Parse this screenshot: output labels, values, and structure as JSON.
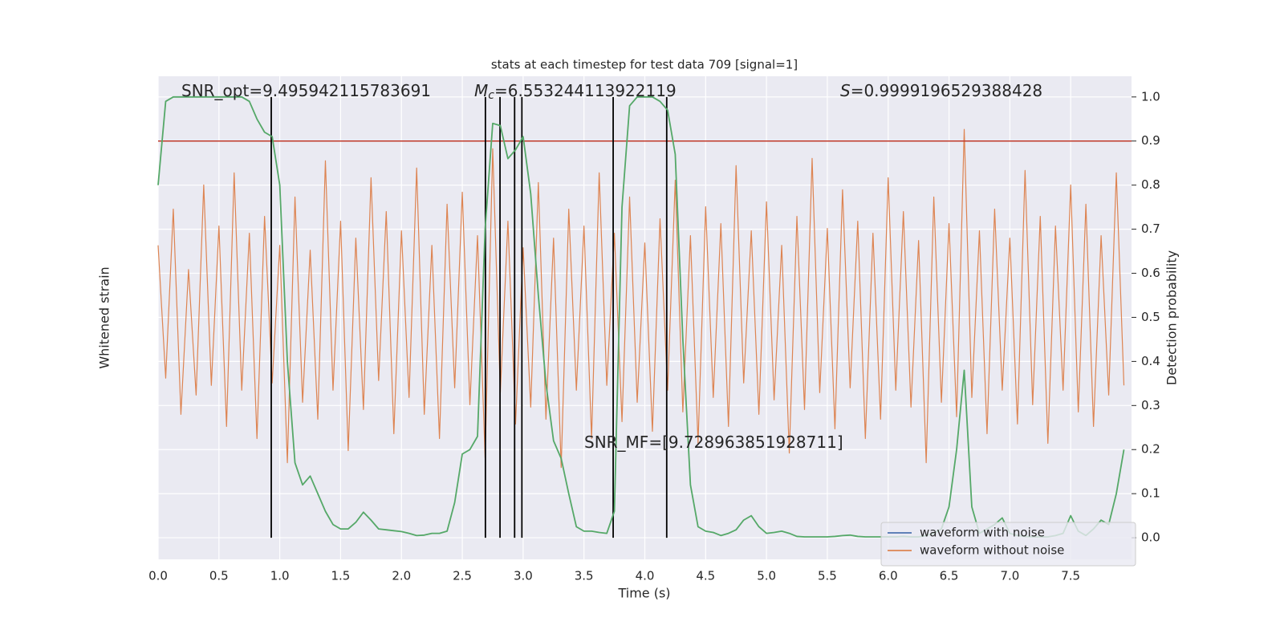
{
  "chart_data": {
    "type": "line",
    "title": "stats at each timestep for test data 709 [signal=1]",
    "xlabel": "Time (s)",
    "ylabel": "Whitened strain",
    "y2label": "Detection probability",
    "x": [
      0,
      0.0625,
      0.125,
      0.1875,
      0.25,
      0.3125,
      0.375,
      0.4375,
      0.5,
      0.5625,
      0.625,
      0.6875,
      0.75,
      0.8125,
      0.875,
      0.9375,
      1,
      1.0625,
      1.125,
      1.1875,
      1.25,
      1.3125,
      1.375,
      1.4375,
      1.5,
      1.5625,
      1.625,
      1.6875,
      1.75,
      1.8125,
      1.875,
      1.9375,
      2,
      2.0625,
      2.125,
      2.1875,
      2.25,
      2.3125,
      2.375,
      2.4375,
      2.5,
      2.5625,
      2.625,
      2.6875,
      2.75,
      2.8125,
      2.875,
      2.9375,
      3,
      3.0625,
      3.125,
      3.1875,
      3.25,
      3.3125,
      3.375,
      3.4375,
      3.5,
      3.5625,
      3.625,
      3.6875,
      3.75,
      3.8125,
      3.875,
      3.9375,
      4,
      4.0625,
      4.125,
      4.1875,
      4.25,
      4.3125,
      4.375,
      4.4375,
      4.5,
      4.5625,
      4.625,
      4.6875,
      4.75,
      4.8125,
      4.875,
      4.9375,
      5,
      5.0625,
      5.125,
      5.1875,
      5.25,
      5.3125,
      5.375,
      5.4375,
      5.5,
      5.5625,
      5.625,
      5.6875,
      5.75,
      5.8125,
      5.875,
      5.9375,
      6,
      6.0625,
      6.125,
      6.1875,
      6.25,
      6.3125,
      6.375,
      6.4375,
      6.5,
      6.5625,
      6.625,
      6.6875,
      6.75,
      6.8125,
      6.875,
      6.9375,
      7,
      7.0625,
      7.125,
      7.1875,
      7.25,
      7.3125,
      7.375,
      7.4375,
      7.5,
      7.5625,
      7.625,
      7.6875,
      7.75,
      7.8125,
      7.875,
      7.9375
    ],
    "xlim": [
      0,
      8
    ],
    "xticks": [
      {
        "value": 0,
        "label": "0.0"
      },
      0.5,
      {
        "value": 1,
        "label": "1.0"
      },
      1.5,
      {
        "value": 2,
        "label": "2.0"
      },
      2.5,
      {
        "value": 3,
        "label": "3.0"
      },
      3.5,
      {
        "value": 4,
        "label": "4.0"
      },
      4.5,
      {
        "value": 5,
        "label": "5.0"
      },
      5.5,
      {
        "value": 6,
        "label": "6.0"
      },
      6.5,
      {
        "value": 7,
        "label": "7.0"
      },
      7.5
    ],
    "ylim": [
      -1,
      1
    ],
    "y2lim": [
      -0.049,
      1.047
    ],
    "y2ticks": [
      {
        "value": 0,
        "label": "0.0"
      },
      0.1,
      0.2,
      0.3,
      0.4,
      0.5,
      0.6,
      0.7,
      0.8,
      0.9,
      {
        "value": 1,
        "label": "1.0"
      }
    ],
    "grid": true,
    "legend": "lower right",
    "series": [
      {
        "name": "waveform with noise",
        "color": "#4c72b0"
      },
      {
        "name": "waveform without noise",
        "color": "#dd8452",
        "values": [
          0.3,
          -0.25,
          0.45,
          -0.4,
          0.2,
          -0.32,
          0.55,
          -0.28,
          0.38,
          -0.45,
          0.6,
          -0.3,
          0.35,
          -0.5,
          0.42,
          -0.27,
          0.3,
          -0.6,
          0.5,
          -0.35,
          0.28,
          -0.42,
          0.65,
          -0.3,
          0.4,
          -0.55,
          0.33,
          -0.38,
          0.58,
          -0.26,
          0.44,
          -0.48,
          0.36,
          -0.33,
          0.62,
          -0.4,
          0.3,
          -0.5,
          0.47,
          -0.29,
          0.52,
          -0.36,
          0.34,
          -0.58,
          0.7,
          -0.31,
          0.4,
          -0.44,
          0.29,
          -0.37,
          0.56,
          -0.42,
          0.33,
          -0.62,
          0.45,
          -0.3,
          0.38,
          -0.5,
          0.6,
          -0.28,
          0.35,
          -0.43,
          0.5,
          -0.35,
          0.31,
          -0.47,
          0.41,
          -0.3,
          0.57,
          -0.39,
          0.34,
          -0.52,
          0.46,
          -0.33,
          0.39,
          -0.45,
          0.63,
          -0.27,
          0.36,
          -0.4,
          0.48,
          -0.34,
          0.3,
          -0.56,
          0.42,
          -0.38,
          0.66,
          -0.31,
          0.37,
          -0.46,
          0.53,
          -0.29,
          0.4,
          -0.5,
          0.35,
          -0.42,
          0.58,
          -0.3,
          0.44,
          -0.37,
          0.32,
          -0.6,
          0.5,
          -0.35,
          0.39,
          -0.41,
          0.78,
          -0.33,
          0.36,
          -0.48,
          0.45,
          -0.3,
          0.33,
          -0.44,
          0.61,
          -0.36,
          0.42,
          -0.52,
          0.38,
          -0.3,
          0.55,
          -0.39,
          0.47,
          -0.45,
          0.34,
          -0.32,
          0.6,
          -0.28
        ]
      },
      {
        "color": "#55a868",
        "axis": "y2",
        "values": [
          0.8,
          0.99,
          1.0,
          1.0,
          1.0,
          1.0,
          1.0,
          1.0,
          1.0,
          1.0,
          1.0,
          1.0,
          0.99,
          0.95,
          0.92,
          0.91,
          0.8,
          0.4,
          0.17,
          0.12,
          0.14,
          0.1,
          0.06,
          0.03,
          0.02,
          0.02,
          0.035,
          0.058,
          0.04,
          0.02,
          0.018,
          0.016,
          0.014,
          0.01,
          0.005,
          0.006,
          0.01,
          0.01,
          0.015,
          0.08,
          0.19,
          0.2,
          0.23,
          0.7,
          0.94,
          0.935,
          0.86,
          0.88,
          0.91,
          0.78,
          0.55,
          0.35,
          0.22,
          0.18,
          0.1,
          0.025,
          0.015,
          0.015,
          0.012,
          0.01,
          0.06,
          0.75,
          0.98,
          1.0,
          1.0,
          1.0,
          0.99,
          0.97,
          0.87,
          0.45,
          0.12,
          0.025,
          0.015,
          0.012,
          0.005,
          0.01,
          0.018,
          0.04,
          0.05,
          0.025,
          0.01,
          0.012,
          0.015,
          0.01,
          0.003,
          0.002,
          0.002,
          0.002,
          0.002,
          0.003,
          0.005,
          0.006,
          0.003,
          0.002,
          0.002,
          0.002,
          0.002,
          0.002,
          0.003,
          0.002,
          0.002,
          0.005,
          0.01,
          0.02,
          0.07,
          0.2,
          0.38,
          0.07,
          0.01,
          0.02,
          0.03,
          0.045,
          0.01,
          0.005,
          0.003,
          0.002,
          0.002,
          0.002,
          0.005,
          0.01,
          0.05,
          0.015,
          0.005,
          0.02,
          0.04,
          0.03,
          0.1,
          0.2
        ]
      }
    ],
    "vlines": {
      "color": "#000000",
      "axis": "y2",
      "ymin": 0,
      "ymax": 1.0,
      "x": [
        0.93,
        2.69,
        2.81,
        2.93,
        2.99,
        3.74,
        4.18
      ]
    },
    "hline": {
      "color": "#c0392b",
      "axis": "y2",
      "y": 0.9
    },
    "annotations": [
      {
        "text": "SNR_opt=9.495942115783691"
      },
      {
        "symbol": "M",
        "subscript": "c",
        "text": "=6.553244113922119"
      },
      {
        "symbol": "S",
        "text": "=0.9999196529388428"
      },
      {
        "text": "SNR_MF=[9.728963851928711]"
      }
    ]
  }
}
